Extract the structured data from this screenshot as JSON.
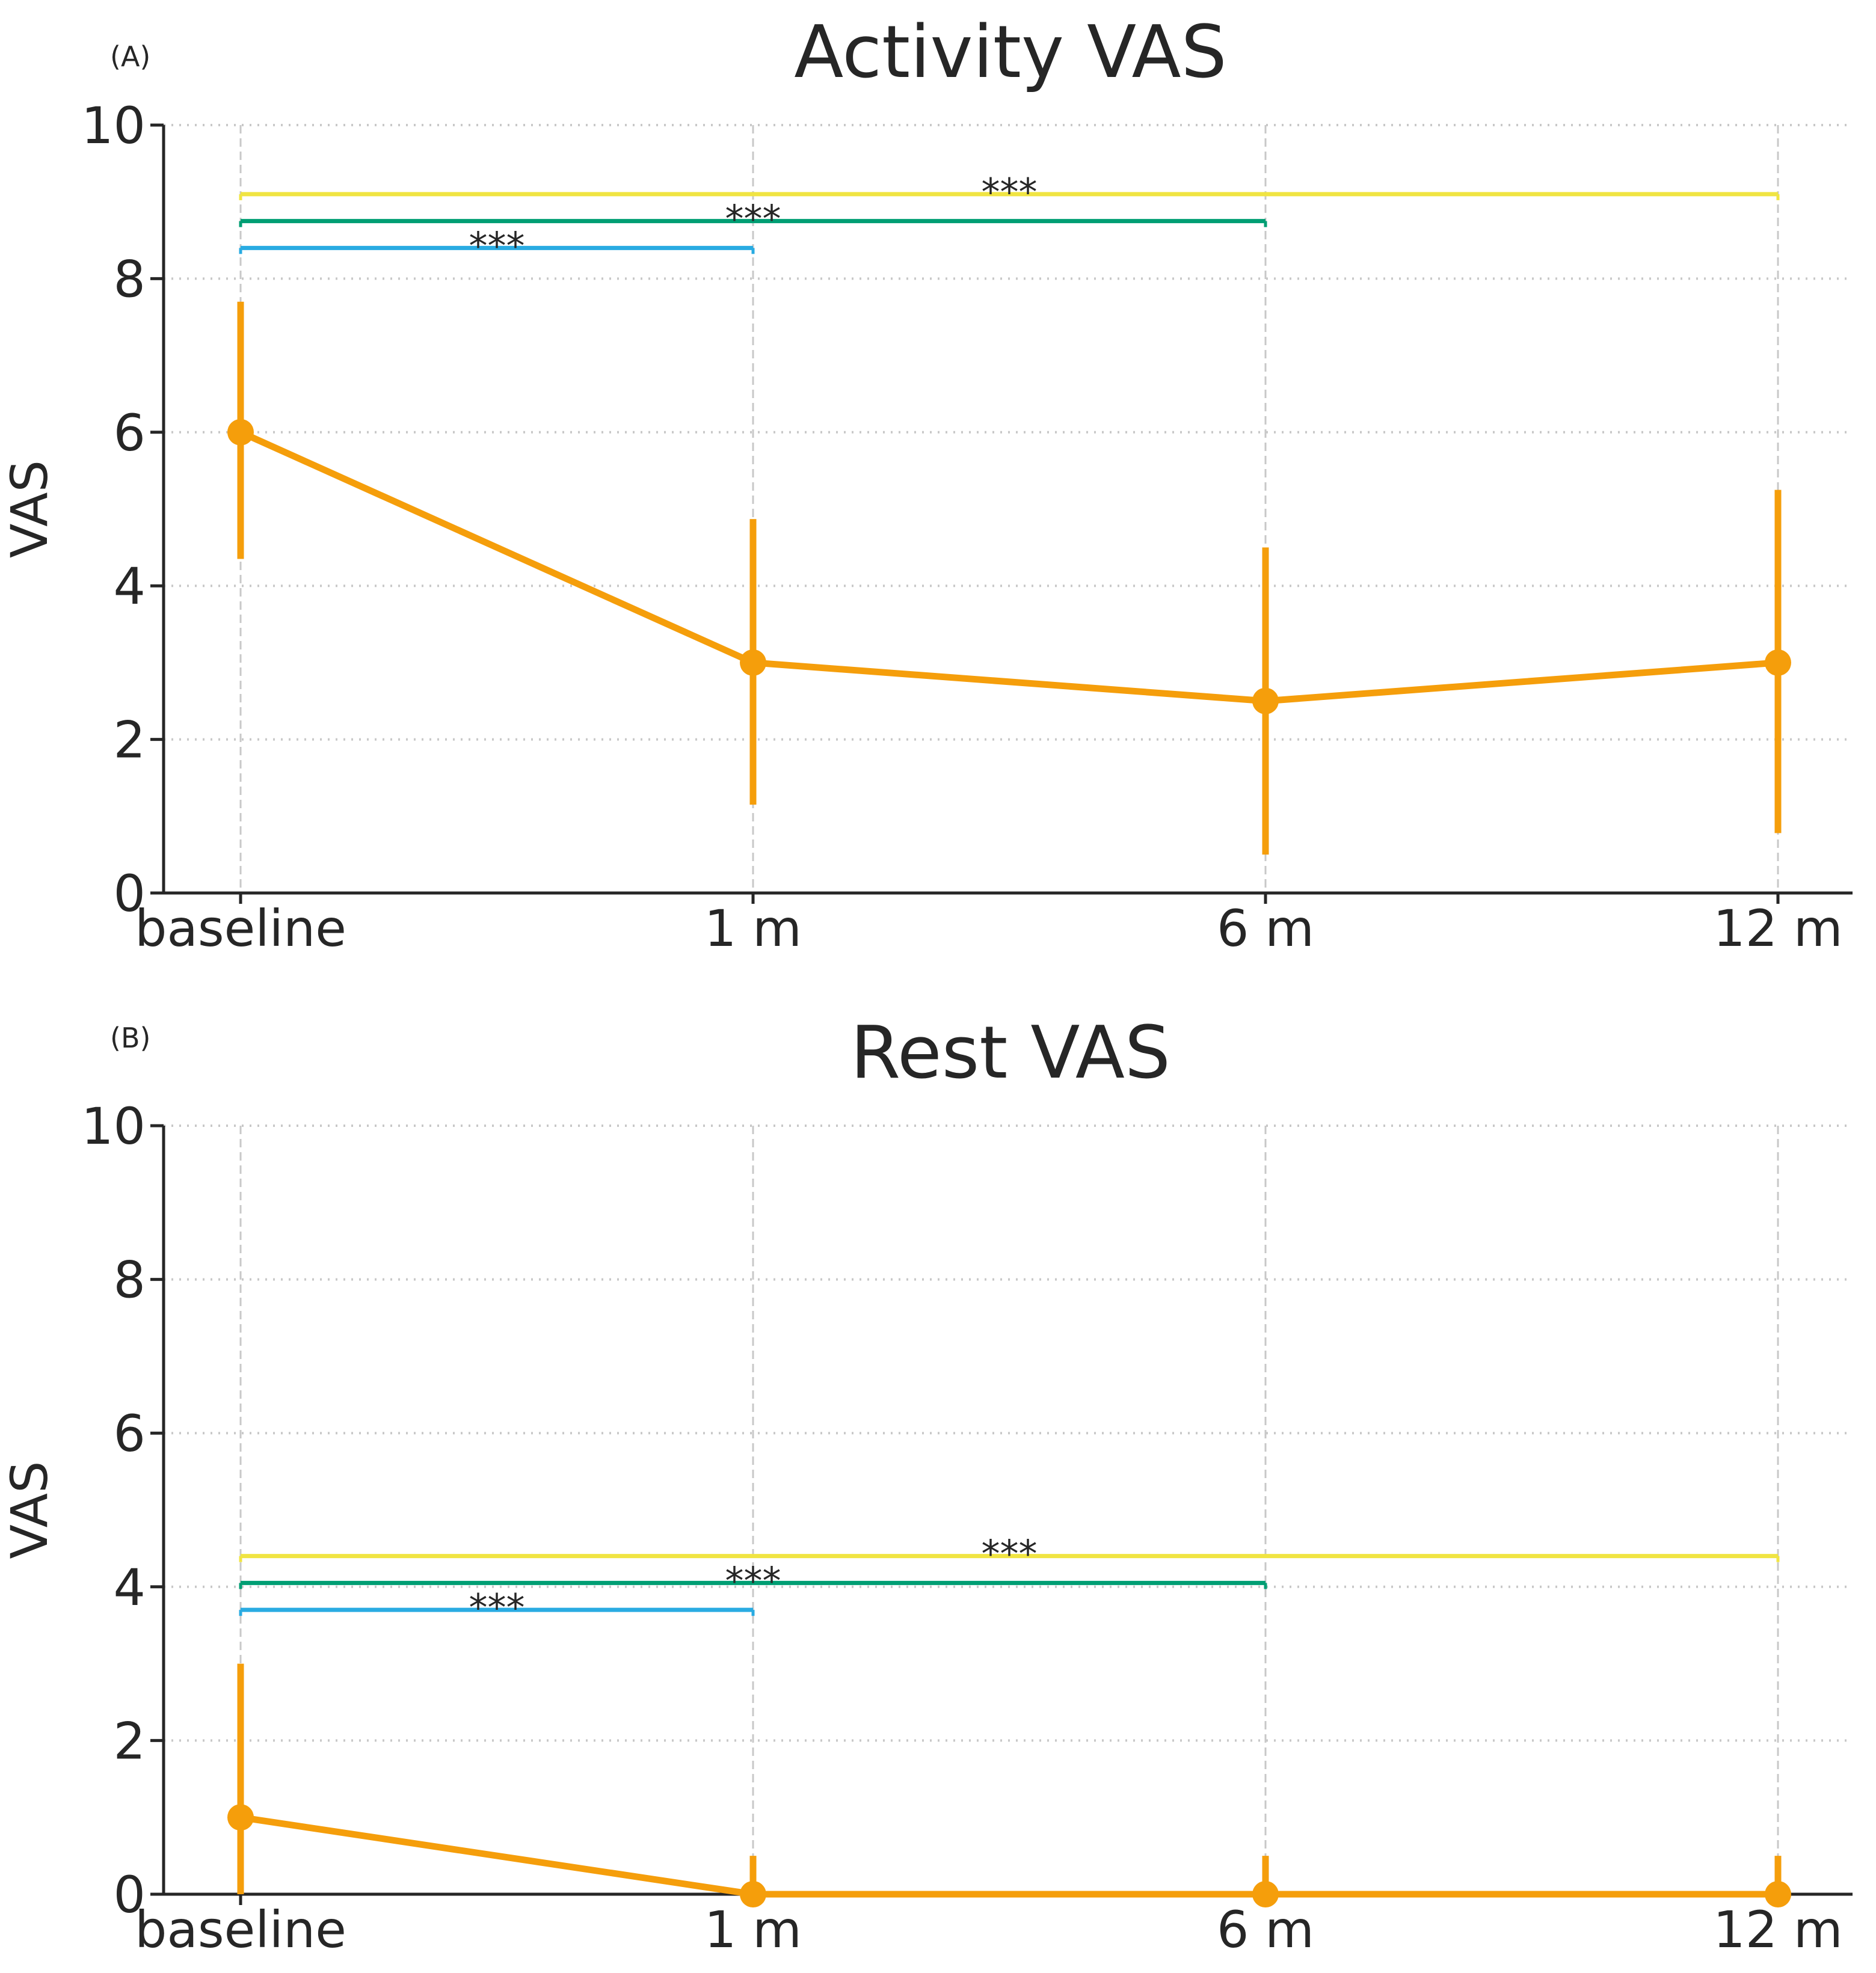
{
  "chart_data": [
    {
      "type": "line",
      "panel": "(A)",
      "title": "Activity VAS",
      "xlabel": "",
      "ylabel": "VAS",
      "categories": [
        "baseline",
        "1 m",
        "6 m",
        "12 m"
      ],
      "ylim": [
        0,
        10
      ],
      "yticks": [
        "0",
        "2",
        "4",
        "6",
        "8",
        "10"
      ],
      "grid": true,
      "series": [
        {
          "name": "Activity VAS",
          "color": "#F59E0B",
          "values": [
            6,
            3,
            2.5,
            3
          ],
          "err_low": [
            4.35,
            1.15,
            0.5,
            0.78
          ],
          "err_high": [
            7.7,
            4.87,
            4.5,
            5.25
          ]
        }
      ],
      "comparisons": [
        {
          "from": 0,
          "to": 1,
          "y": 8.4,
          "label": "***",
          "color": "#29ABE2"
        },
        {
          "from": 0,
          "to": 2,
          "y": 8.75,
          "label": "***",
          "color": "#009E73"
        },
        {
          "from": 0,
          "to": 3,
          "y": 9.1,
          "label": "***",
          "color": "#F0E442"
        }
      ]
    },
    {
      "type": "line",
      "panel": "(B)",
      "title": "Rest VAS",
      "xlabel": "",
      "ylabel": "VAS",
      "categories": [
        "baseline",
        "1 m",
        "6 m",
        "12 m"
      ],
      "ylim": [
        0,
        10
      ],
      "yticks": [
        "0",
        "2",
        "4",
        "6",
        "8",
        "10"
      ],
      "grid": true,
      "series": [
        {
          "name": "Rest VAS",
          "color": "#F59E0B",
          "values": [
            1,
            0,
            0,
            0
          ],
          "err_low": [
            0,
            0,
            0,
            0
          ],
          "err_high": [
            3,
            0.5,
            0.5,
            0.5
          ]
        }
      ],
      "comparisons": [
        {
          "from": 0,
          "to": 1,
          "y": 3.7,
          "label": "***",
          "color": "#29ABE2"
        },
        {
          "from": 0,
          "to": 2,
          "y": 4.05,
          "label": "***",
          "color": "#009E73"
        },
        {
          "from": 0,
          "to": 3,
          "y": 4.4,
          "label": "***",
          "color": "#F0E442"
        }
      ]
    }
  ]
}
